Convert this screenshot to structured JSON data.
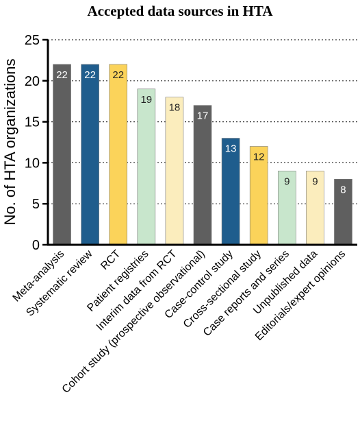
{
  "chart_data": {
    "type": "bar",
    "title": "Accepted data sources in HTA",
    "ylabel": "No.  of HTA organizations",
    "xlabel": "",
    "ylim": [
      0,
      25
    ],
    "yticks": [
      0,
      5,
      10,
      15,
      20,
      25
    ],
    "grid": "horizontal dotted",
    "categories": [
      "Meta-analysis",
      "Systematic review",
      "RCT",
      "Patient registries",
      "Interim data from RCT",
      "Cohort study (prospective observational)",
      "Case-control study",
      "Cross-sectional study",
      "Case reports and series",
      "Unpublished data",
      "Editorials/expert opinions"
    ],
    "values": [
      22,
      22,
      22,
      19,
      18,
      17,
      13,
      12,
      9,
      9,
      8
    ],
    "colors": [
      "#5f5f5f",
      "#1f5d8d",
      "#fbd35a",
      "#c8e6cc",
      "#fbedbd",
      "#5f5f5f",
      "#1f5d8d",
      "#fbd35a",
      "#c8e6cc",
      "#fbedbd",
      "#5f5f5f"
    ],
    "label_colors": [
      "#ffffff",
      "#ffffff",
      "#222222",
      "#222222",
      "#222222",
      "#ffffff",
      "#ffffff",
      "#222222",
      "#222222",
      "#222222",
      "#ffffff"
    ]
  }
}
